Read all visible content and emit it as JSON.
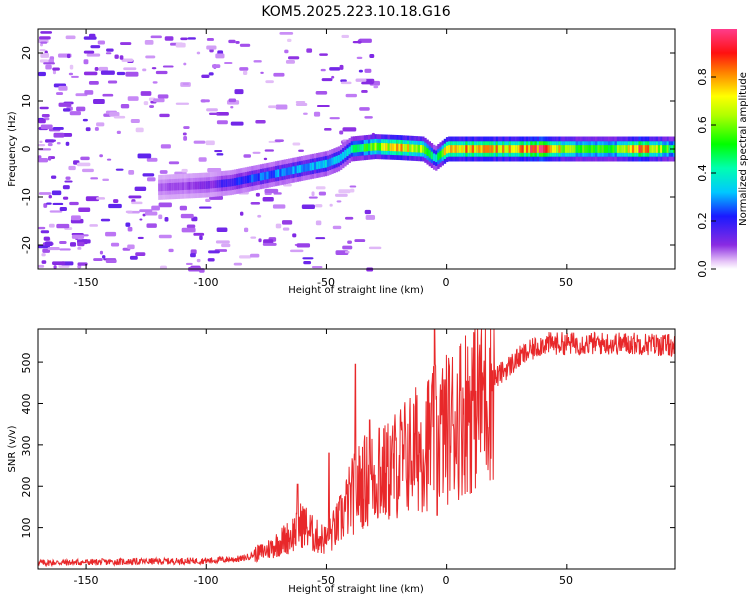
{
  "title": "KOM5.2025.223.10.18.G16",
  "chart_data": [
    {
      "type": "heatmap",
      "xlabel": "Height of straight line (km)",
      "ylabel": "Frequency (Hz)",
      "xlim": [
        -170,
        95
      ],
      "ylim": [
        -25,
        25
      ],
      "xticks": [
        "-150",
        "-100",
        "-50",
        "0",
        "50"
      ],
      "yticks": [
        "-20",
        "-10",
        "0",
        "10",
        "20"
      ],
      "colorbar": {
        "label": "Normalized spectral amplitude",
        "range": [
          0,
          1
        ],
        "ticks": [
          "0.0",
          "0.2",
          "0.4",
          "0.6",
          "0.8"
        ]
      },
      "ridge": {
        "x": [
          -170,
          -150,
          -120,
          -100,
          -90,
          -80,
          -70,
          -60,
          -50,
          -45,
          -40,
          -30,
          -20,
          -10,
          -5,
          0,
          10,
          20,
          30,
          40,
          50,
          60,
          70,
          80,
          95
        ],
        "freq": [
          -8,
          -8,
          -8,
          -7.5,
          -7,
          -6,
          -5,
          -4,
          -3,
          -2,
          0,
          0.5,
          0.3,
          0,
          -2,
          0,
          0,
          0,
          0,
          0,
          0,
          0,
          0,
          0,
          0
        ],
        "amplitude": [
          0.0,
          0.05,
          0.08,
          0.12,
          0.2,
          0.25,
          0.28,
          0.3,
          0.32,
          0.3,
          0.4,
          0.6,
          0.75,
          0.6,
          0.35,
          0.8,
          0.78,
          0.75,
          0.8,
          0.9,
          0.6,
          0.5,
          0.55,
          0.85,
          0.45
        ]
      }
    },
    {
      "type": "line",
      "xlabel": "Height of straight line (km)",
      "ylabel": "SNR (v/v)",
      "xlim": [
        -170,
        95
      ],
      "ylim": [
        0,
        580
      ],
      "xticks": [
        "-150",
        "-100",
        "-50",
        "0",
        "50"
      ],
      "yticks": [
        "100",
        "200",
        "300",
        "400",
        "500"
      ],
      "series": [
        {
          "name": "SNR",
          "color": "#e8282a",
          "envelope_x": [
            -170,
            -100,
            -85,
            -75,
            -65,
            -60,
            -55,
            -50,
            -45,
            -40,
            -35,
            -30,
            -25,
            -20,
            -15,
            -10,
            -5,
            0,
            10,
            20,
            30,
            40,
            60,
            80,
            95
          ],
          "envelope_y": [
            15,
            20,
            25,
            45,
            80,
            110,
            80,
            70,
            110,
            170,
            210,
            220,
            230,
            260,
            280,
            300,
            320,
            340,
            400,
            460,
            510,
            545,
            545,
            545,
            540
          ],
          "spikes": [
            {
              "x": -62,
              "y": 205
            },
            {
              "x": -49,
              "y": 280
            },
            {
              "x": -38,
              "y": 495
            },
            {
              "x": -32,
              "y": 360
            },
            {
              "x": -28,
              "y": 340
            },
            {
              "x": -18,
              "y": 300
            },
            {
              "x": -5,
              "y": 585
            },
            {
              "x": -4,
              "y": 130
            }
          ]
        }
      ]
    }
  ]
}
